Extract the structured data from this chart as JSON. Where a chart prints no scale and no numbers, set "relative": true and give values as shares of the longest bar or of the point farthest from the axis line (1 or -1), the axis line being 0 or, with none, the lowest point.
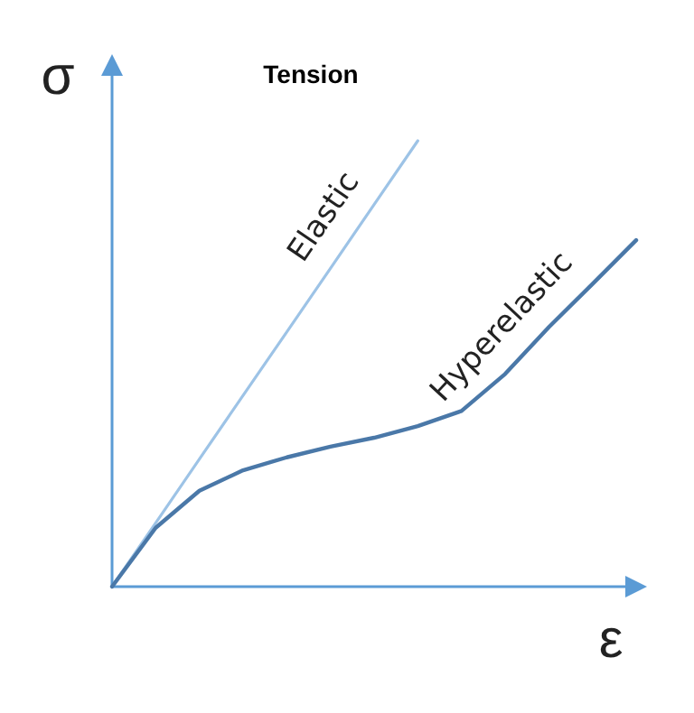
{
  "chart_data": {
    "type": "line",
    "title": "Tension",
    "xlabel": "ε",
    "ylabel": "σ",
    "relative": true,
    "categories": [
      null,
      null,
      null,
      null,
      null,
      null,
      null,
      null,
      null,
      null,
      null,
      null,
      null
    ],
    "series": [
      {
        "name": "Elastic",
        "color": "#9dc3e6",
        "values": [
          0,
          0.143,
          0.286,
          0.429,
          0.571,
          0.714,
          0.857,
          1,
          null,
          null,
          null,
          null,
          null
        ]
      },
      {
        "name": "Hyperelastic",
        "color": "#4a78a8",
        "values": [
          0,
          0.132,
          0.215,
          0.261,
          0.29,
          0.314,
          0.334,
          0.36,
          0.394,
          0.477,
          0.582,
          0.679,
          0.777
        ]
      }
    ]
  }
}
